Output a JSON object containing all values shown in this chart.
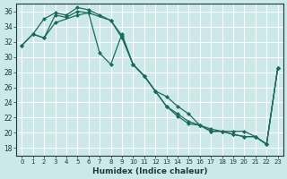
{
  "xlabel": "Humidex (Indice chaleur)",
  "bg_color": "#cce8e8",
  "grid_color": "#ffffff",
  "line_color": "#1a6b5a",
  "xlim": [
    -0.5,
    23.5
  ],
  "ylim": [
    17,
    37
  ],
  "yticks": [
    18,
    20,
    22,
    24,
    26,
    28,
    30,
    32,
    34,
    36
  ],
  "xticks": [
    0,
    1,
    2,
    3,
    4,
    5,
    6,
    7,
    8,
    9,
    10,
    11,
    12,
    13,
    14,
    15,
    16,
    17,
    18,
    19,
    20,
    21,
    22,
    23
  ],
  "series1_x": [
    0,
    1,
    2,
    3,
    4,
    5,
    6,
    7,
    8,
    9,
    10,
    11,
    12,
    13,
    14,
    15,
    16,
    17,
    18,
    19,
    20,
    21,
    22,
    23
  ],
  "series1_y": [
    31.5,
    33.0,
    35.0,
    35.8,
    35.5,
    36.5,
    36.2,
    35.5,
    34.8,
    32.5,
    29.0,
    27.5,
    25.5,
    24.8,
    23.5,
    22.5,
    21.0,
    20.2,
    20.2,
    19.8,
    19.5,
    19.5,
    18.5,
    28.5
  ],
  "series2_x": [
    0,
    1,
    2,
    3,
    4,
    5,
    6,
    7,
    8,
    9,
    10,
    11,
    12,
    13,
    14,
    15,
    16,
    17,
    18,
    19,
    20,
    21,
    22,
    23
  ],
  "series2_y": [
    31.5,
    33.0,
    32.5,
    35.5,
    35.2,
    36.0,
    35.8,
    30.5,
    29.0,
    33.0,
    29.0,
    27.5,
    25.5,
    23.5,
    22.2,
    21.2,
    21.0,
    20.5,
    20.2,
    20.2,
    20.2,
    19.5,
    18.5,
    28.5
  ],
  "series3_x": [
    1,
    2,
    3,
    5,
    6,
    8,
    9,
    10,
    11,
    12,
    13,
    14,
    15,
    16,
    17,
    18,
    19,
    20,
    21,
    22,
    23
  ],
  "series3_y": [
    33.0,
    32.5,
    34.5,
    35.5,
    35.8,
    34.8,
    32.8,
    29.0,
    27.5,
    25.5,
    23.5,
    22.5,
    21.5,
    21.0,
    20.2,
    20.2,
    19.8,
    19.5,
    19.5,
    18.5,
    28.5
  ]
}
